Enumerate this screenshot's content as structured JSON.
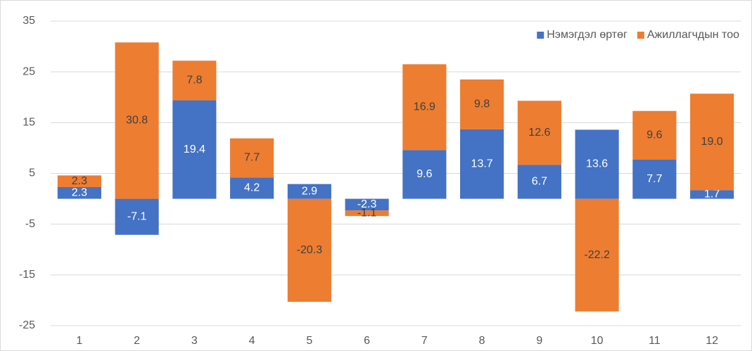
{
  "chart_data": {
    "type": "stacked_bar",
    "categories": [
      "1",
      "2",
      "3",
      "4",
      "5",
      "6",
      "7",
      "8",
      "9",
      "10",
      "11",
      "12"
    ],
    "series": [
      {
        "name": "Нэмэгдэл өртөг",
        "color": "#4472c4",
        "label_color": "#ffffff",
        "values": [
          2.3,
          -7.1,
          19.4,
          4.2,
          2.9,
          -2.3,
          9.6,
          13.7,
          6.7,
          13.6,
          7.7,
          1.7
        ]
      },
      {
        "name": "Ажиллагчдын тоо",
        "color": "#ed7d31",
        "label_color": "#404040",
        "values": [
          2.3,
          30.8,
          7.8,
          7.7,
          -20.3,
          -1.1,
          16.9,
          9.8,
          12.6,
          -22.2,
          9.6,
          19.0
        ],
        "value_labels": [
          "2.3",
          "30.8",
          "7.8",
          "7.7",
          "-20.3",
          "-1.1",
          "16.9",
          "9.8",
          "12.6",
          "-22.2",
          "9.6",
          "19.0"
        ]
      }
    ],
    "ylim": [
      -25,
      35
    ],
    "yticks": [
      -25,
      -15,
      -5,
      5,
      15,
      25,
      35
    ],
    "grid": true,
    "legend": "top-right"
  }
}
